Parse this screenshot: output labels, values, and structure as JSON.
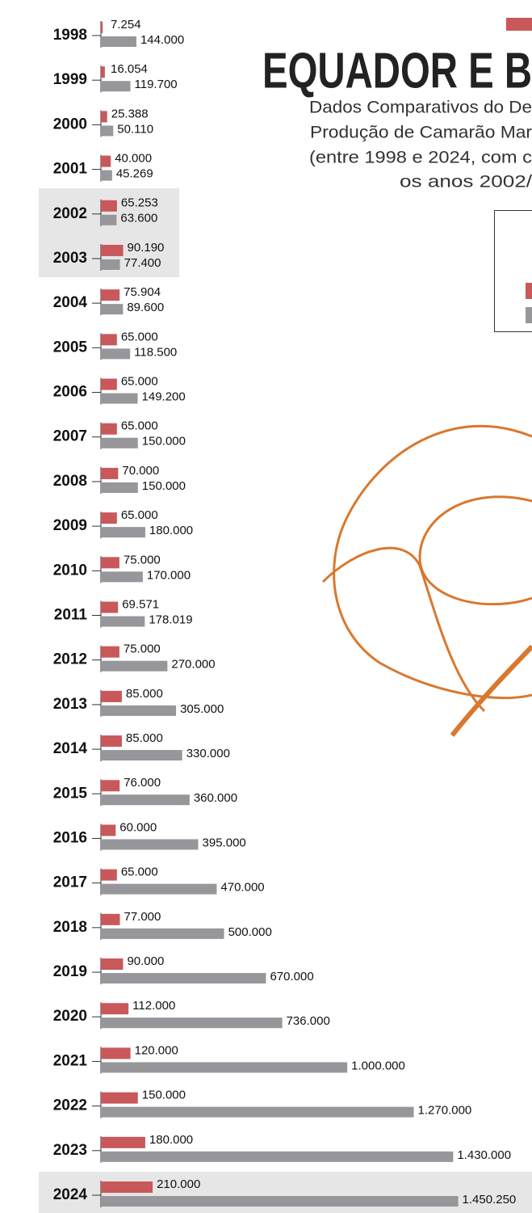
{
  "chart_data": {
    "type": "bar",
    "orientation": "horizontal",
    "title": "EQUADOR E B",
    "subtitle": [
      "Dados Comparativos do De",
      "Produção de Camarão Mar",
      "(entre 1998 e 2024, com c",
      "os anos 2002/"
    ],
    "categories": [
      "1998",
      "1999",
      "2000",
      "2001",
      "2002",
      "2003",
      "2004",
      "2005",
      "2006",
      "2007",
      "2008",
      "2009",
      "2010",
      "2011",
      "2012",
      "2013",
      "2014",
      "2015",
      "2016",
      "2017",
      "2018",
      "2019",
      "2020",
      "2021",
      "2022",
      "2023",
      "2024"
    ],
    "series": [
      {
        "color": "#c9585a",
        "values": [
          7254,
          16054,
          25388,
          40000,
          65253,
          90190,
          75904,
          65000,
          65000,
          65000,
          70000,
          65000,
          75000,
          69571,
          75000,
          85000,
          85000,
          76000,
          60000,
          65000,
          77000,
          90000,
          112000,
          120000,
          150000,
          180000,
          210000
        ],
        "value_labels": [
          "7.254",
          "16.054",
          "25.388",
          "40.000",
          "65.253",
          "90.190",
          "75.904",
          "65.000",
          "65.000",
          "65.000",
          "70.000",
          "65.000",
          "75.000",
          "69.571",
          "75.000",
          "85.000",
          "85.000",
          "76.000",
          "60.000",
          "65.000",
          "77.000",
          "90.000",
          "112.000",
          "120.000",
          "150.000",
          "180.000",
          "210.000"
        ]
      },
      {
        "color": "#97979b",
        "values": [
          144000,
          119700,
          50110,
          45269,
          63600,
          77400,
          89600,
          118500,
          149200,
          150000,
          150000,
          180000,
          170000,
          178019,
          270000,
          305000,
          330000,
          360000,
          395000,
          470000,
          500000,
          670000,
          736000,
          1000000,
          1270000,
          1430000,
          1450250
        ],
        "value_labels": [
          "144.000",
          "119.700",
          "50.110",
          "45.269",
          "63.600",
          "77.400",
          "89.600",
          "118.500",
          "149.200",
          "150.000",
          "150.000",
          "180.000",
          "170.000",
          "178.019",
          "270.000",
          "305.000",
          "330.000",
          "360.000",
          "395.000",
          "470.000",
          "500.000",
          "670.000",
          "736.000",
          "1.000.000",
          "1.270.000",
          "1.430.000",
          "1.450.250"
        ]
      }
    ],
    "xlim": [
      0,
      1750000
    ]
  }
}
